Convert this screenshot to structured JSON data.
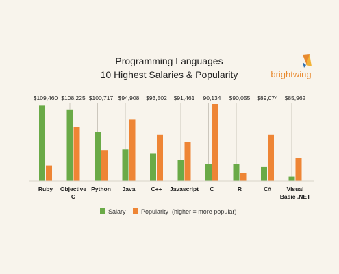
{
  "colors": {
    "salary": "#6aaa47",
    "popularity": "#ee8535",
    "background": "#f8f4ec",
    "logo_text": "#e8892e"
  },
  "logo": {
    "text": "brightwing",
    "icon": "brightwing-logo-icon"
  },
  "chart_data": {
    "type": "bar",
    "title": "Programming Languages",
    "subtitle": "10 Highest Salaries & Popularity",
    "categories": [
      "Ruby",
      "Objective C",
      "Python",
      "Java",
      "C++",
      "Javascript",
      "C",
      "R",
      "C#",
      "Visual Basic .NET"
    ],
    "category_lines": [
      [
        "Ruby"
      ],
      [
        "Objective",
        "C"
      ],
      [
        "Python"
      ],
      [
        "Java"
      ],
      [
        "C++"
      ],
      [
        "Javascript"
      ],
      [
        "C"
      ],
      [
        "R"
      ],
      [
        "C#"
      ],
      [
        "Visual",
        "Basic .NET"
      ]
    ],
    "salary_labels": [
      "$109,460",
      "$108,225",
      "$100,717",
      "$94,908",
      "$93,502",
      "$91,461",
      "90,134",
      "$90,055",
      "$89,074",
      "$85,962"
    ],
    "series": [
      {
        "name": "Salary",
        "values": [
          109460,
          108225,
          100717,
          94908,
          93502,
          91461,
          90134,
          90055,
          89074,
          85962
        ]
      },
      {
        "name": "Popularity  (higher = more popular)",
        "values": [
          2,
          7,
          4,
          8,
          6,
          5,
          10,
          1,
          6,
          3
        ]
      }
    ],
    "salary_range": [
      84500,
      110000
    ],
    "popularity_range": [
      0,
      10
    ],
    "grid": false,
    "legend_position": "bottom"
  }
}
